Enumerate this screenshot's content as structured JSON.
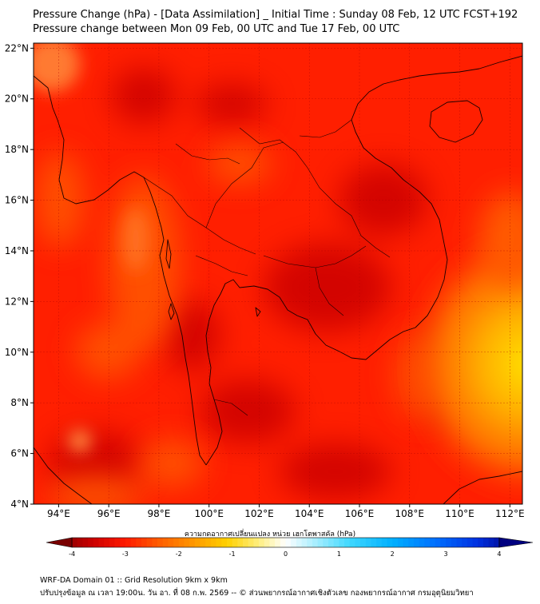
{
  "header": {
    "title": "Pressure Change (hPa) - [Data Assimilation] _ Initial Time : Sunday 08 Feb, 12 UTC FCST+192",
    "subtitle": "Pressure change between Mon 09 Feb, 00 UTC and Tue 17 Feb, 00 UTC"
  },
  "map": {
    "lat_labels": [
      "22°N",
      "20°N",
      "18°N",
      "16°N",
      "14°N",
      "12°N",
      "10°N",
      "8°N",
      "6°N",
      "4°N"
    ],
    "lat_values": [
      22,
      20,
      18,
      16,
      14,
      12,
      10,
      8,
      6,
      4
    ],
    "lon_labels": [
      "94°E",
      "96°E",
      "98°E",
      "100°E",
      "102°E",
      "104°E",
      "106°E",
      "108°E",
      "110°E",
      "112°E"
    ],
    "lon_values": [
      94,
      96,
      98,
      100,
      102,
      104,
      106,
      108,
      110,
      112
    ],
    "extent": {
      "lon_min": 93,
      "lon_max": 112.5,
      "lat_min": 4,
      "lat_max": 22.2
    },
    "field_colors": {
      "base": "#ff1f00",
      "dark": "#d40000",
      "orange": "#ff5a00",
      "yellow": "#ffd400"
    }
  },
  "colorbar": {
    "title": "ความกดอากาศเปลี่ยนแปลง หน่วย เฮกโตพาสคัล (hPa)",
    "tick_labels": [
      "-4",
      "-3",
      "-2",
      "-1",
      "0",
      "1",
      "2",
      "3",
      "4"
    ],
    "tick_values": [
      -4,
      -3,
      -2,
      -1,
      0,
      1,
      2,
      3,
      4
    ],
    "range": [
      -4.3,
      4.3
    ]
  },
  "footer": {
    "line1": "WRF-DA Domain 01 :: Grid Resolution 9km x 9km",
    "line2": "ปรับปรุงข้อมูล ณ เวลา 19:00น. วัน อา. ที่ 08 ก.พ. 2569 -- © ส่วนพยากรณ์อากาศเชิงตัวเลข กองพยากรณ์อากาศ กรมอุตุนิยมวิทยา"
  }
}
